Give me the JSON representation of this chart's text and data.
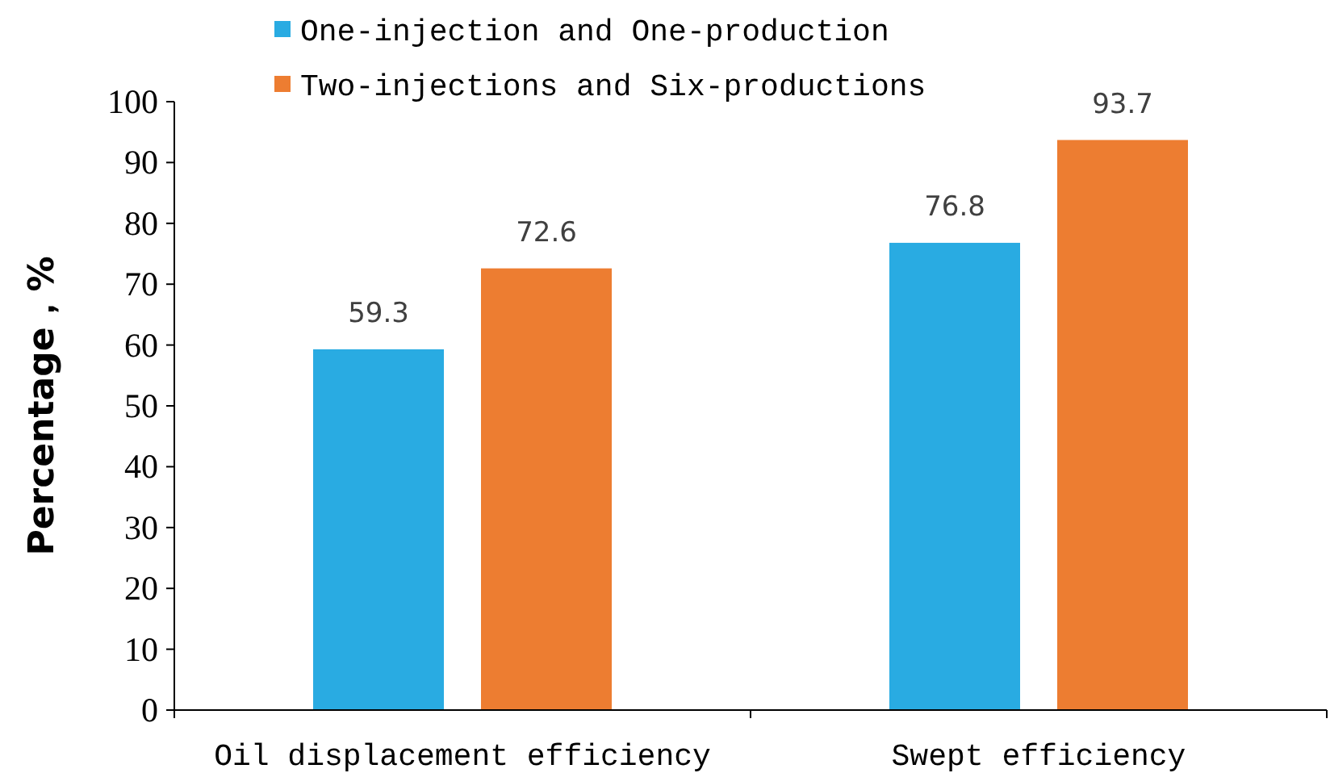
{
  "chart_data": {
    "type": "bar",
    "ylabel": "Percentage，%",
    "categories": [
      "Oil displacement efficiency",
      "Swept efficiency"
    ],
    "series": [
      {
        "name": "One-injection and One-production",
        "color": "#29abe2",
        "values": [
          59.3,
          76.8
        ]
      },
      {
        "name": "Two-injections and Six-productions",
        "color": "#ed7d31",
        "values": [
          72.6,
          93.7
        ]
      }
    ],
    "ylim": [
      0,
      100
    ],
    "yticks": [
      0,
      10,
      20,
      30,
      40,
      50,
      60,
      70,
      80,
      90,
      100
    ],
    "data_labels": true,
    "grid": false,
    "legend": "top left"
  }
}
